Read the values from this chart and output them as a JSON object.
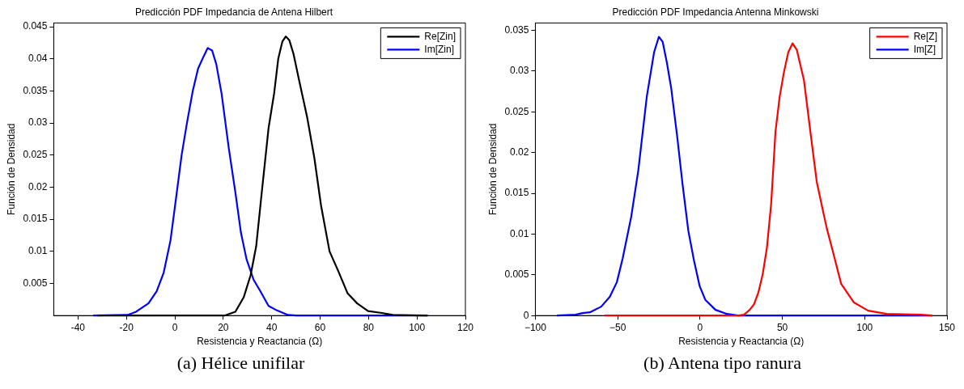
{
  "chart_data": [
    {
      "type": "line",
      "title": "Predicción PDF Impedancia de Antena Hilbert",
      "xlabel": "Resistencia y Reactancia (Ω)",
      "ylabel": "Función de Densidad",
      "annotations": [
        "(a) Hélice unifilar"
      ],
      "xlim": [
        -50,
        120
      ],
      "xticks": [
        -40,
        -20,
        0,
        20,
        40,
        60,
        80,
        100,
        120
      ],
      "ylim": [
        0,
        0.0456
      ],
      "yticks": [
        0.005,
        0.01,
        0.015,
        0.02,
        0.025,
        0.03,
        0.035,
        0.04,
        0.045
      ],
      "grid": false,
      "legend": "top right",
      "marker": "none",
      "line_style": "solid",
      "series": [
        {
          "name": "Re[Zin]",
          "color": "#000000",
          "x": [
            -32,
            20.5,
            25,
            28.5,
            31.3,
            33.6,
            35.9,
            38.7,
            41,
            42.7,
            44.4,
            45.8,
            47.3,
            49,
            51.3,
            54.7,
            57.6,
            60.4,
            63.9,
            67.3,
            71.3,
            75.3,
            79.8,
            85.5,
            90,
            104.4
          ],
          "values": [
            0,
            0,
            0.0006,
            0.0029,
            0.0063,
            0.0108,
            0.0192,
            0.0292,
            0.0346,
            0.04,
            0.0427,
            0.0435,
            0.0429,
            0.0408,
            0.0367,
            0.0308,
            0.0246,
            0.0171,
            0.01,
            0.0071,
            0.0035,
            0.0019,
            0.0007,
            0.0004,
            0.0001,
            0
          ]
        },
        {
          "name": "Im[Zin]",
          "color": "#0000ff",
          "x": [
            -33.7,
            -19.5,
            -16,
            -10.9,
            -7.5,
            -4.6,
            -1.8,
            0.5,
            2.8,
            5,
            7.4,
            9.6,
            11.9,
            13.6,
            15.4,
            17.1,
            19.3,
            22.2,
            25,
            27.3,
            29.6,
            32.5,
            35.3,
            38.7,
            42.2,
            46.7,
            50.1,
            104.4
          ],
          "values": [
            0,
            0.0001,
            0.0006,
            0.0019,
            0.0038,
            0.0067,
            0.0117,
            0.0183,
            0.025,
            0.03,
            0.035,
            0.0385,
            0.0404,
            0.0417,
            0.0413,
            0.0392,
            0.0346,
            0.0263,
            0.0192,
            0.0129,
            0.0088,
            0.0056,
            0.0038,
            0.0015,
            0.0008,
            0.0001,
            0,
            0
          ]
        }
      ]
    },
    {
      "type": "line",
      "title": "Predicción PDF Impedancia Antenna Minkowski",
      "xlabel": "Resistencia y Reactancia (Ω)",
      "ylabel": "Función de Densidad",
      "annotations": [
        "(b) Antena tipo ranura"
      ],
      "xlim": [
        -100,
        150
      ],
      "xticks": [
        {
          "value": -100,
          "label": "−100"
        },
        {
          "value": -50,
          "label": "−50"
        },
        0,
        50,
        100,
        150
      ],
      "ylim": [
        0,
        0.0359
      ],
      "yticks": [
        0,
        0.005,
        0.01,
        0.015,
        0.02,
        0.025,
        0.03,
        0.035
      ],
      "grid": false,
      "legend": "top right",
      "marker": "none",
      "line_style": "solid",
      "series": [
        {
          "name": "Re[Z]",
          "color": "#ff0000",
          "x": [
            -58,
            23.2,
            26.7,
            30.2,
            32.8,
            35.4,
            38,
            40.6,
            43.2,
            45.8,
            48.4,
            51,
            53.6,
            56.2,
            58.8,
            63.1,
            67.5,
            70.9,
            74.4,
            77,
            80.5,
            85.7,
            93.5,
            102.1,
            113.4,
            134.2,
            141.2
          ],
          "values": [
            0,
            0,
            0.0001,
            0.0007,
            0.0014,
            0.0028,
            0.005,
            0.0083,
            0.0137,
            0.0225,
            0.0269,
            0.0299,
            0.0323,
            0.0334,
            0.0326,
            0.0289,
            0.0218,
            0.0164,
            0.0131,
            0.0107,
            0.008,
            0.0039,
            0.0016,
            0.0006,
            0.0002,
            0.0001,
            0
          ]
        },
        {
          "name": "Im[Z]",
          "color": "#0000ff",
          "x": [
            -86.9,
            -75.6,
            -71.3,
            -66.9,
            -60,
            -54.8,
            -50.5,
            -47,
            -41.8,
            -37.5,
            -32.3,
            -27.9,
            -25,
            -22.7,
            -20.1,
            -17.5,
            -14,
            -10.6,
            -7.1,
            -3.6,
            -0.2,
            3.3,
            9.4,
            16.3,
            23.2,
            141.2
          ],
          "values": [
            0,
            0.0001,
            0.0003,
            0.0004,
            0.0011,
            0.0023,
            0.0041,
            0.007,
            0.0121,
            0.0178,
            0.0269,
            0.0323,
            0.0342,
            0.0336,
            0.031,
            0.0279,
            0.0222,
            0.0161,
            0.0104,
            0.0067,
            0.0036,
            0.0019,
            0.0007,
            0.0002,
            0,
            0
          ]
        }
      ]
    }
  ]
}
